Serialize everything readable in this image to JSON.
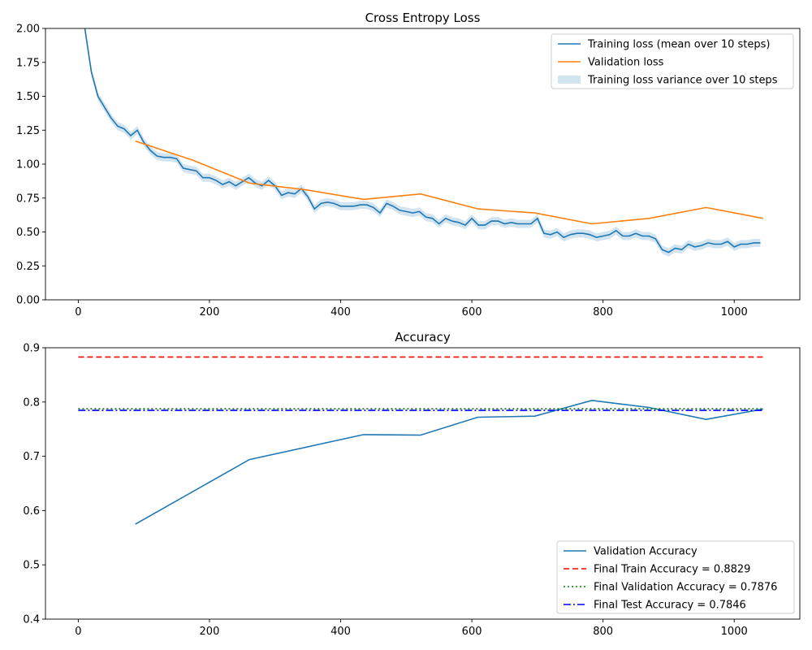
{
  "chart_data": [
    {
      "type": "line",
      "title": "Cross Entropy Loss",
      "xlabel": "",
      "ylabel": "",
      "xlim": [
        -50,
        1100
      ],
      "ylim": [
        0,
        2.0
      ],
      "xticks": [
        0,
        200,
        400,
        600,
        800,
        1000
      ],
      "yticks": [
        0.0,
        0.25,
        0.5,
        0.75,
        1.0,
        1.25,
        1.5,
        1.75,
        2.0
      ],
      "xtick_labels": [
        "0",
        "200",
        "400",
        "600",
        "800",
        "1000"
      ],
      "ytick_labels": [
        "0.00",
        "0.25",
        "0.50",
        "0.75",
        "1.00",
        "1.25",
        "1.50",
        "1.75",
        "2.00"
      ],
      "grid": false,
      "legend_position": "top-right",
      "series": [
        {
          "name": "Training loss (mean over 10 steps)",
          "color": "#1f77b4",
          "kind": "line",
          "x": [
            0,
            10,
            20,
            30,
            40,
            50,
            60,
            70,
            80,
            90,
            100,
            110,
            120,
            130,
            140,
            150,
            160,
            170,
            180,
            190,
            200,
            210,
            220,
            230,
            240,
            250,
            260,
            270,
            280,
            290,
            300,
            310,
            320,
            330,
            340,
            350,
            360,
            370,
            380,
            390,
            400,
            410,
            420,
            430,
            440,
            450,
            460,
            470,
            480,
            490,
            500,
            510,
            520,
            530,
            540,
            550,
            560,
            570,
            580,
            590,
            600,
            610,
            620,
            630,
            640,
            650,
            660,
            670,
            680,
            690,
            700,
            710,
            720,
            730,
            740,
            750,
            760,
            770,
            780,
            790,
            800,
            810,
            820,
            830,
            840,
            850,
            860,
            870,
            880,
            890,
            900,
            910,
            920,
            930,
            940,
            950,
            960,
            970,
            980,
            990,
            1000,
            1010,
            1020,
            1030,
            1040
          ],
          "y": [
            2.9,
            2.0,
            1.68,
            1.5,
            1.42,
            1.34,
            1.28,
            1.26,
            1.21,
            1.25,
            1.16,
            1.1,
            1.06,
            1.05,
            1.05,
            1.04,
            0.97,
            0.96,
            0.95,
            0.9,
            0.9,
            0.88,
            0.85,
            0.87,
            0.84,
            0.87,
            0.9,
            0.86,
            0.84,
            0.88,
            0.84,
            0.77,
            0.79,
            0.78,
            0.82,
            0.76,
            0.67,
            0.71,
            0.72,
            0.71,
            0.69,
            0.69,
            0.69,
            0.7,
            0.7,
            0.68,
            0.64,
            0.71,
            0.69,
            0.66,
            0.65,
            0.64,
            0.65,
            0.61,
            0.6,
            0.56,
            0.6,
            0.58,
            0.57,
            0.55,
            0.6,
            0.55,
            0.55,
            0.58,
            0.58,
            0.56,
            0.57,
            0.56,
            0.56,
            0.56,
            0.6,
            0.49,
            0.48,
            0.5,
            0.46,
            0.48,
            0.49,
            0.49,
            0.48,
            0.46,
            0.47,
            0.48,
            0.51,
            0.47,
            0.47,
            0.49,
            0.47,
            0.47,
            0.45,
            0.37,
            0.35,
            0.38,
            0.37,
            0.41,
            0.39,
            0.4,
            0.42,
            0.41,
            0.41,
            0.43,
            0.39,
            0.41,
            0.41,
            0.42,
            0.42
          ]
        },
        {
          "name": "Validation loss",
          "color": "#ff7f0e",
          "kind": "line",
          "x": [
            87,
            174,
            261,
            348,
            435,
            522,
            609,
            696,
            783,
            870,
            957,
            1044
          ],
          "y": [
            1.17,
            1.03,
            0.86,
            0.81,
            0.74,
            0.78,
            0.67,
            0.64,
            0.56,
            0.6,
            0.68,
            0.6
          ]
        },
        {
          "name": "Training loss variance over 10 steps",
          "color": "#1f77b4",
          "kind": "band",
          "band_half_width": 0.03
        }
      ]
    },
    {
      "type": "line",
      "title": "Accuracy",
      "xlabel": "",
      "ylabel": "",
      "xlim": [
        -50,
        1100
      ],
      "ylim": [
        0.4,
        0.9
      ],
      "xticks": [
        0,
        200,
        400,
        600,
        800,
        1000
      ],
      "yticks": [
        0.4,
        0.5,
        0.6,
        0.7,
        0.8,
        0.9
      ],
      "xtick_labels": [
        "0",
        "200",
        "400",
        "600",
        "800",
        "1000"
      ],
      "ytick_labels": [
        "0.4",
        "0.5",
        "0.6",
        "0.7",
        "0.8",
        "0.9"
      ],
      "grid": false,
      "legend_position": "bottom-right",
      "series": [
        {
          "name": "Validation Accuracy",
          "color": "#1f77b4",
          "kind": "line",
          "x": [
            87,
            261,
            435,
            522,
            609,
            696,
            783,
            870,
            957,
            1044
          ],
          "y": [
            0.575,
            0.694,
            0.74,
            0.739,
            0.772,
            0.774,
            0.803,
            0.79,
            0.768,
            0.787
          ]
        },
        {
          "name": "Final Train Accuracy = 0.8829",
          "color": "#ff0000",
          "kind": "hline",
          "dash": "dashed",
          "y": 0.8829,
          "xrange": [
            0,
            1044
          ]
        },
        {
          "name": "Final Validation Accuracy = 0.7876",
          "color": "#008000",
          "kind": "hline",
          "dash": "dotted",
          "y": 0.7876,
          "xrange": [
            0,
            1044
          ]
        },
        {
          "name": "Final Test Accuracy = 0.7846",
          "color": "#0000ff",
          "kind": "hline",
          "dash": "dashdot",
          "y": 0.7846,
          "xrange": [
            0,
            1044
          ]
        }
      ]
    }
  ]
}
